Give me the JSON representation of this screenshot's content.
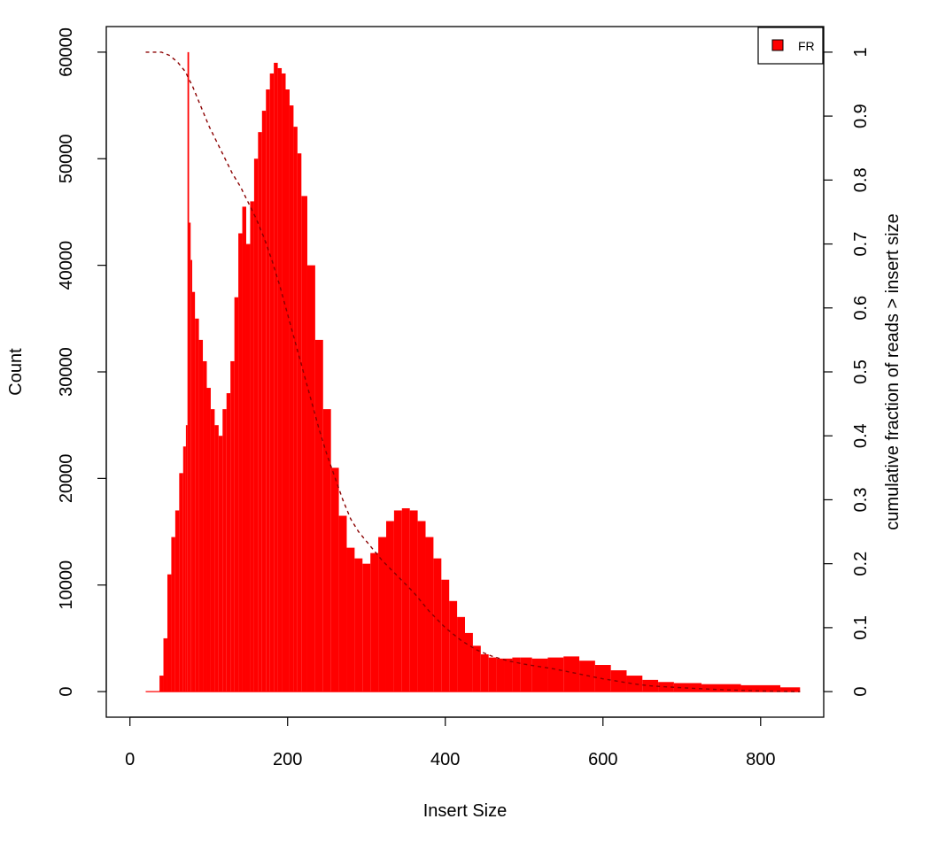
{
  "colors": {
    "histogram": "#ff0000",
    "cumulative": "#8b0000",
    "legend_swatch": "#ff0000",
    "axes": "#000000",
    "background": "#ffffff"
  },
  "chart_data": {
    "type": "bar",
    "title": "",
    "xlabel": "Insert Size",
    "ylabel": "Count",
    "y2label": "cumulative fraction of reads > insert size",
    "xlim": [
      -30,
      880
    ],
    "ylim": [
      -2400,
      62400
    ],
    "y2lim": [
      -0.04,
      1.04
    ],
    "x_ticks": [
      0,
      200,
      400,
      600,
      800
    ],
    "x_tick_labels": [
      "0",
      "200",
      "400",
      "600",
      "800"
    ],
    "y_ticks": [
      0,
      10000,
      20000,
      30000,
      40000,
      50000,
      60000
    ],
    "y_tick_labels": [
      "0",
      "10000",
      "20000",
      "30000",
      "40000",
      "50000",
      "60000"
    ],
    "y2_ticks": [
      0,
      0.1,
      0.2,
      0.3,
      0.4,
      0.5,
      0.6,
      0.7,
      0.8,
      0.9,
      1
    ],
    "y2_tick_labels": [
      "0",
      "0.1",
      "0.2",
      "0.3",
      "0.4",
      "0.5",
      "0.6",
      "0.7",
      "0.8",
      "0.9",
      "1"
    ],
    "grid": false,
    "legend": {
      "entries": [
        "FR"
      ],
      "position": "top-right"
    },
    "series": [
      {
        "name": "FR",
        "kind": "histogram",
        "x": [
          20,
          35,
          40,
          45,
          50,
          55,
          60,
          65,
          70,
          72,
          74,
          76,
          78,
          80,
          85,
          90,
          95,
          100,
          105,
          110,
          115,
          120,
          125,
          130,
          135,
          140,
          145,
          150,
          155,
          160,
          165,
          170,
          175,
          180,
          185,
          190,
          195,
          200,
          205,
          210,
          215,
          220,
          230,
          240,
          250,
          260,
          270,
          280,
          290,
          300,
          310,
          320,
          330,
          340,
          350,
          360,
          370,
          380,
          390,
          400,
          410,
          420,
          430,
          440,
          450,
          460,
          470,
          480,
          490,
          500,
          520,
          540,
          560,
          580,
          600,
          620,
          640,
          660,
          680,
          700,
          750,
          800,
          850
        ],
        "y": [
          0,
          0,
          1500,
          5000,
          11000,
          14500,
          17000,
          20500,
          23000,
          25000,
          60000,
          44000,
          40500,
          37500,
          35000,
          33000,
          31000,
          28500,
          26500,
          25000,
          24000,
          26500,
          28000,
          31000,
          37000,
          43000,
          45500,
          42000,
          46000,
          50000,
          52500,
          54500,
          56500,
          58000,
          59000,
          58500,
          58000,
          56500,
          55000,
          53000,
          50500,
          46500,
          40000,
          33000,
          26500,
          21000,
          16500,
          13500,
          12500,
          12000,
          13000,
          14500,
          16000,
          17000,
          17200,
          17000,
          16000,
          14500,
          12500,
          10500,
          8500,
          7000,
          5500,
          4300,
          3500,
          3200,
          3100,
          3100,
          3200,
          3200,
          3100,
          3200,
          3300,
          2900,
          2500,
          2000,
          1500,
          1100,
          900,
          800,
          700,
          600,
          400
        ]
      },
      {
        "name": "",
        "kind": "cumulative",
        "x": [
          20,
          40,
          50,
          60,
          70,
          80,
          90,
          100,
          110,
          120,
          130,
          140,
          150,
          160,
          170,
          180,
          190,
          200,
          210,
          220,
          230,
          240,
          250,
          260,
          270,
          280,
          290,
          300,
          310,
          320,
          340,
          360,
          380,
          400,
          420,
          440,
          460,
          480,
          500,
          520,
          540,
          560,
          580,
          600,
          620,
          640,
          660,
          700,
          750,
          800,
          850
        ],
        "y": [
          1.0,
          1.0,
          0.995,
          0.985,
          0.97,
          0.945,
          0.915,
          0.885,
          0.86,
          0.835,
          0.81,
          0.79,
          0.765,
          0.74,
          0.71,
          0.675,
          0.635,
          0.59,
          0.545,
          0.5,
          0.455,
          0.41,
          0.37,
          0.335,
          0.3,
          0.27,
          0.25,
          0.235,
          0.22,
          0.205,
          0.18,
          0.155,
          0.125,
          0.1,
          0.08,
          0.065,
          0.055,
          0.048,
          0.043,
          0.039,
          0.035,
          0.03,
          0.025,
          0.02,
          0.016,
          0.012,
          0.009,
          0.006,
          0.003,
          0.001,
          0.0
        ]
      }
    ]
  }
}
